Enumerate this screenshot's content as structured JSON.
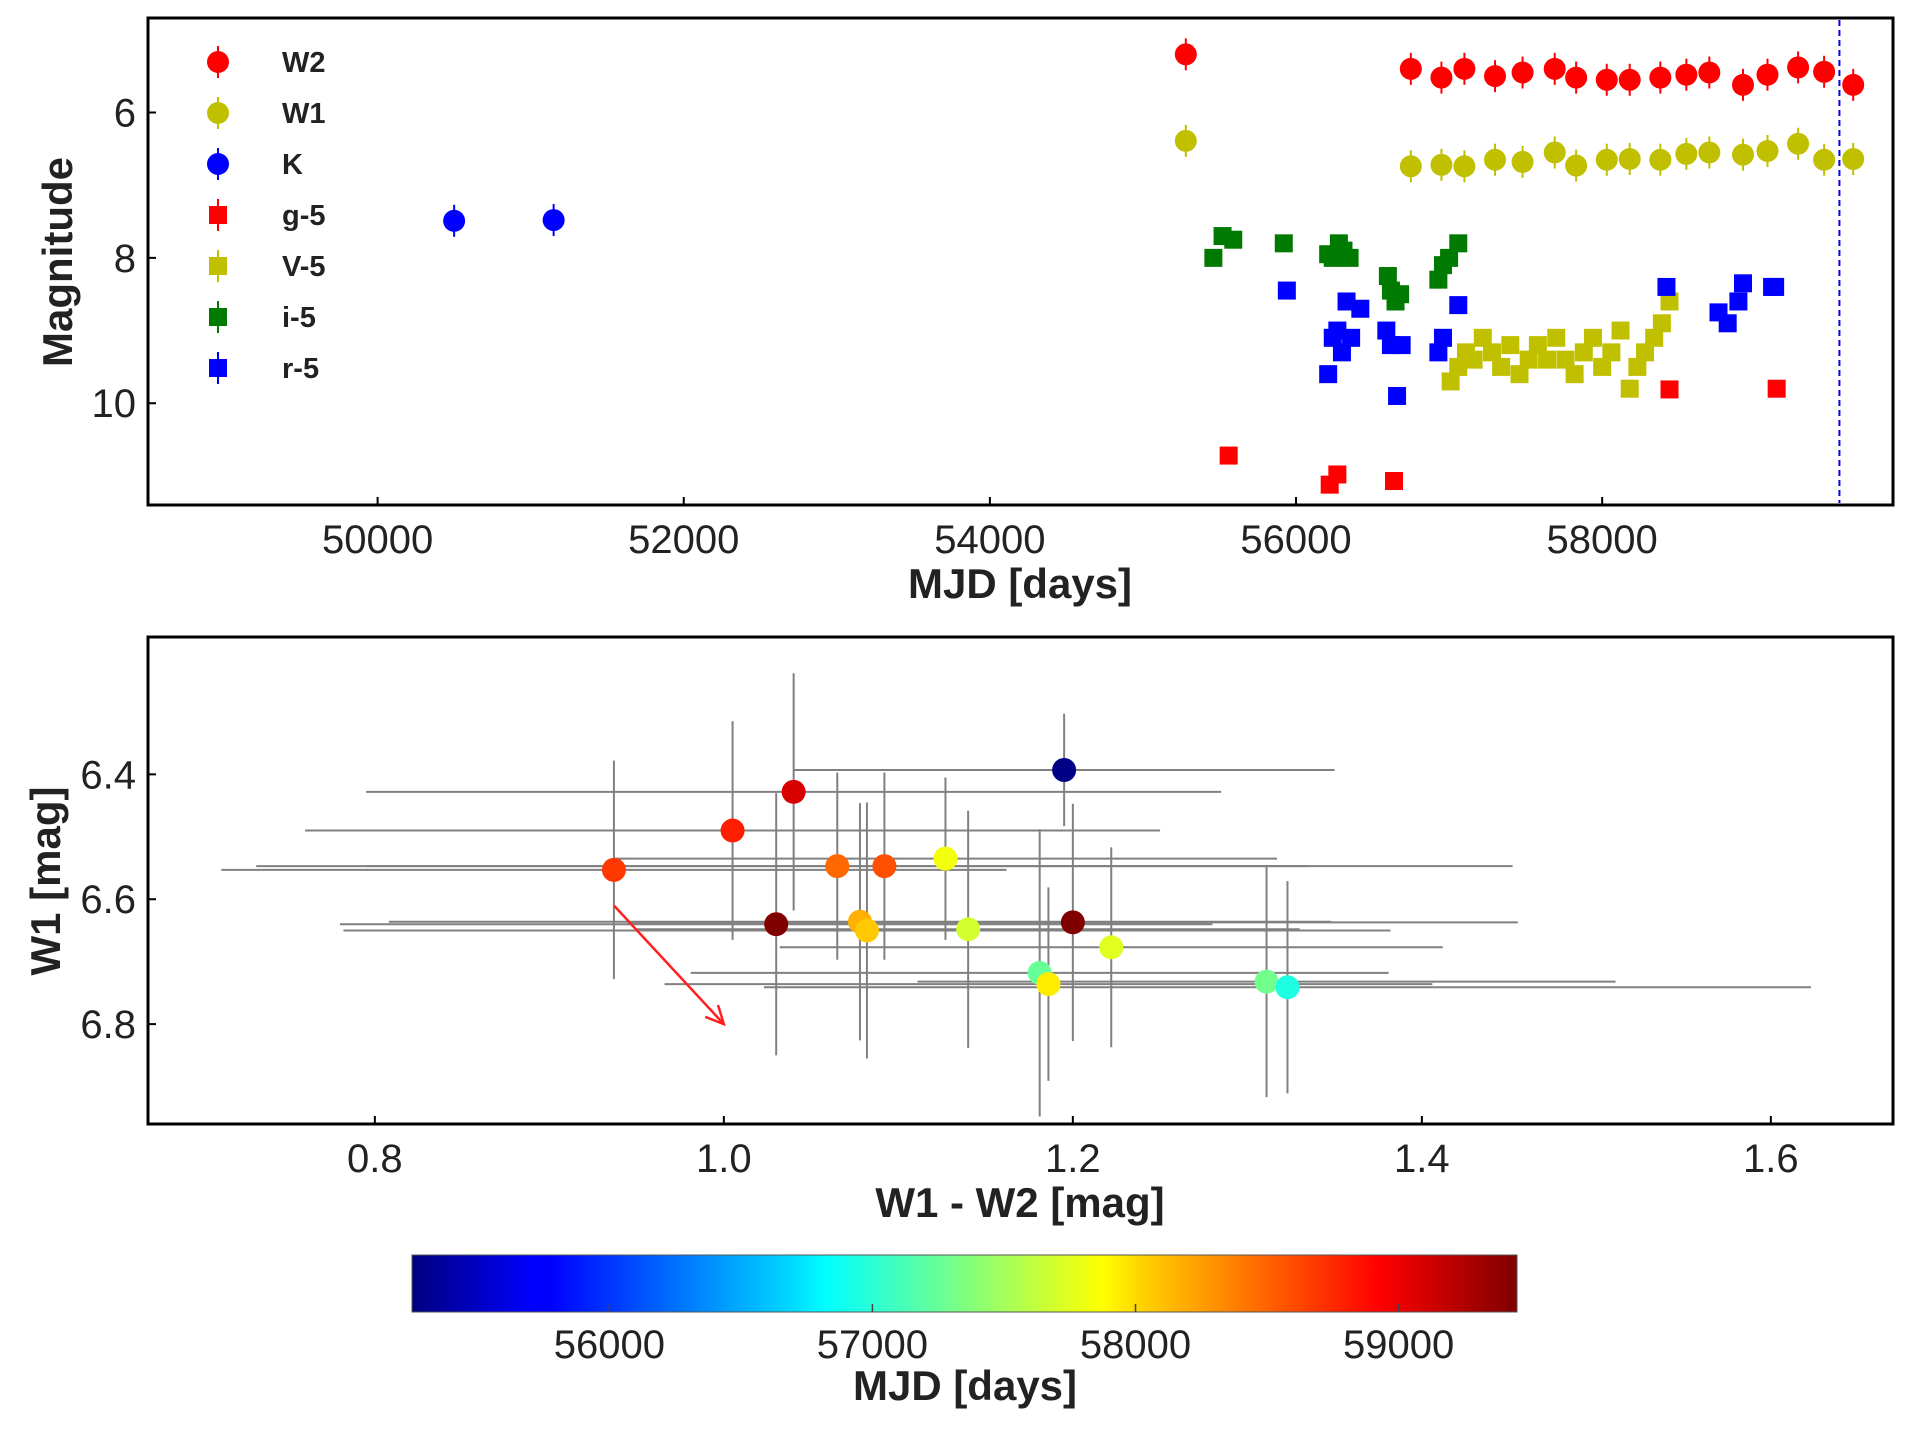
{
  "chart_data": [
    {
      "type": "scatter",
      "title": "",
      "xlabel": "MJD [days]",
      "ylabel": "Magnitude",
      "xlim": [
        48500,
        59900
      ],
      "ylim": [
        11.4,
        4.7
      ],
      "y_inverted": true,
      "grid": false,
      "legend": "top-left",
      "xticks": [
        50000,
        52000,
        54000,
        56000,
        58000
      ],
      "yticks": [
        6,
        8,
        10
      ],
      "vline": {
        "x": 59550,
        "style": "dashed",
        "color": "#0000ee"
      },
      "series": [
        {
          "name": "W2",
          "marker": "circle",
          "color": "#ff0000",
          "x": [
            55280,
            56750,
            56950,
            57100,
            57300,
            57480,
            57690,
            57830,
            58030,
            58180,
            58380,
            58550,
            58700,
            58920,
            59080,
            59280,
            59450,
            59640
          ],
          "y": [
            5.2,
            5.4,
            5.52,
            5.4,
            5.5,
            5.45,
            5.4,
            5.52,
            5.55,
            5.55,
            5.52,
            5.48,
            5.45,
            5.62,
            5.48,
            5.38,
            5.44,
            5.62
          ]
        },
        {
          "name": "W1",
          "marker": "circle",
          "color": "#c0c000",
          "x": [
            55280,
            56750,
            56950,
            57100,
            57300,
            57480,
            57690,
            57830,
            58030,
            58180,
            58380,
            58550,
            58700,
            58920,
            59080,
            59280,
            59450,
            59640
          ],
          "y": [
            6.39,
            6.74,
            6.72,
            6.74,
            6.65,
            6.68,
            6.55,
            6.73,
            6.65,
            6.64,
            6.65,
            6.57,
            6.55,
            6.58,
            6.53,
            6.43,
            6.65,
            6.64
          ]
        },
        {
          "name": "K",
          "marker": "circle",
          "color": "#0000ff",
          "x": [
            50500,
            51150
          ],
          "y": [
            7.49,
            7.48
          ]
        },
        {
          "name": "g-5",
          "marker": "square",
          "color": "#ff0000",
          "x": [
            55560,
            56220,
            56270,
            56640,
            58440,
            59140
          ],
          "y": [
            10.72,
            11.12,
            10.98,
            11.07,
            9.81,
            9.8
          ]
        },
        {
          "name": "V-5",
          "marker": "square",
          "color": "#c0c000",
          "x": [
            57010,
            57060,
            57110,
            57160,
            57220,
            57280,
            57340,
            57400,
            57460,
            57520,
            57580,
            57640,
            57700,
            57760,
            57820,
            57880,
            57940,
            58000,
            58060,
            58120,
            58180,
            58230,
            58280,
            58340,
            58390,
            58440
          ],
          "y": [
            9.7,
            9.5,
            9.3,
            9.4,
            9.1,
            9.3,
            9.5,
            9.2,
            9.6,
            9.4,
            9.2,
            9.4,
            9.1,
            9.4,
            9.6,
            9.3,
            9.1,
            9.5,
            9.3,
            9.0,
            9.8,
            9.5,
            9.3,
            9.1,
            8.9,
            8.6
          ]
        },
        {
          "name": "i-5",
          "marker": "square",
          "color": "#007a00",
          "x": [
            55460,
            55520,
            55590,
            55920,
            56210,
            56240,
            56280,
            56310,
            56350,
            56600,
            56620,
            56650,
            56680,
            56930,
            56960,
            57000,
            57060
          ],
          "y": [
            8.0,
            7.7,
            7.75,
            7.8,
            7.95,
            8.0,
            7.8,
            7.9,
            8.0,
            8.25,
            8.45,
            8.6,
            8.5,
            8.3,
            8.1,
            8.0,
            7.8
          ]
        },
        {
          "name": "r-5",
          "marker": "square",
          "color": "#0000ff",
          "x": [
            55940,
            56210,
            56240,
            56270,
            56300,
            56330,
            56360,
            56420,
            56590,
            56620,
            56660,
            56690,
            56930,
            56960,
            57060,
            58420,
            58760,
            58820,
            58890,
            58920,
            59110,
            59130
          ],
          "y": [
            8.45,
            9.6,
            9.1,
            9.0,
            9.3,
            8.6,
            9.1,
            8.7,
            9.0,
            9.2,
            9.9,
            9.2,
            9.3,
            9.1,
            8.65,
            8.4,
            8.75,
            8.9,
            8.6,
            8.35,
            8.4,
            8.4
          ]
        }
      ]
    },
    {
      "type": "scatter",
      "title": "",
      "xlabel": "W1 - W2 [mag]",
      "ylabel": "W1 [mag]",
      "xlim": [
        0.67,
        1.67
      ],
      "ylim": [
        6.96,
        6.18
      ],
      "y_inverted": true,
      "grid": false,
      "xticks": [
        0.8,
        1.0,
        1.2,
        1.4,
        1.6
      ],
      "yticks": [
        6.4,
        6.6,
        6.8
      ],
      "arrow": {
        "from": [
          0.937,
          6.61
        ],
        "to": [
          1.0,
          6.8
        ],
        "color": "#ff2020"
      },
      "colorbar": {
        "label": "MJD [days]",
        "range": [
          55250,
          59450
        ],
        "ticks": [
          56000,
          57000,
          58000,
          59000
        ],
        "colormap": "jet"
      },
      "points": [
        {
          "x": 1.195,
          "y": 6.393,
          "xerr": 0.155,
          "yerr": 0.09,
          "mjd": 55280
        },
        {
          "x": 1.04,
          "y": 6.428,
          "xerr": 0.245,
          "yerr": 0.19,
          "mjd": 59080
        },
        {
          "x": 1.005,
          "y": 6.49,
          "xerr": 0.245,
          "yerr": 0.175,
          "mjd": 58800
        },
        {
          "x": 0.937,
          "y": 6.553,
          "xerr": 0.225,
          "yerr": 0.175,
          "mjd": 58700
        },
        {
          "x": 1.065,
          "y": 6.547,
          "xerr": 0.27,
          "yerr": 0.15,
          "mjd": 58500
        },
        {
          "x": 1.092,
          "y": 6.547,
          "xerr": 0.36,
          "yerr": 0.15,
          "mjd": 58600
        },
        {
          "x": 1.127,
          "y": 6.535,
          "xerr": 0.19,
          "yerr": 0.13,
          "mjd": 57830
        },
        {
          "x": 1.03,
          "y": 6.64,
          "xerr": 0.25,
          "yerr": 0.21,
          "mjd": 59450
        },
        {
          "x": 1.078,
          "y": 6.636,
          "xerr": 0.27,
          "yerr": 0.19,
          "mjd": 58200
        },
        {
          "x": 1.082,
          "y": 6.65,
          "xerr": 0.3,
          "yerr": 0.205,
          "mjd": 58100
        },
        {
          "x": 1.14,
          "y": 6.648,
          "xerr": 0.19,
          "yerr": 0.19,
          "mjd": 57690
        },
        {
          "x": 1.2,
          "y": 6.637,
          "xerr": 0.255,
          "yerr": 0.19,
          "mjd": 59640
        },
        {
          "x": 1.222,
          "y": 6.677,
          "xerr": 0.19,
          "yerr": 0.16,
          "mjd": 57750
        },
        {
          "x": 1.181,
          "y": 6.718,
          "xerr": 0.2,
          "yerr": 0.23,
          "mjd": 57250
        },
        {
          "x": 1.186,
          "y": 6.736,
          "xerr": 0.22,
          "yerr": 0.155,
          "mjd": 57950
        },
        {
          "x": 1.311,
          "y": 6.732,
          "xerr": 0.2,
          "yerr": 0.185,
          "mjd": 57300
        },
        {
          "x": 1.323,
          "y": 6.741,
          "xerr": 0.3,
          "yerr": 0.17,
          "mjd": 56950
        }
      ]
    }
  ]
}
